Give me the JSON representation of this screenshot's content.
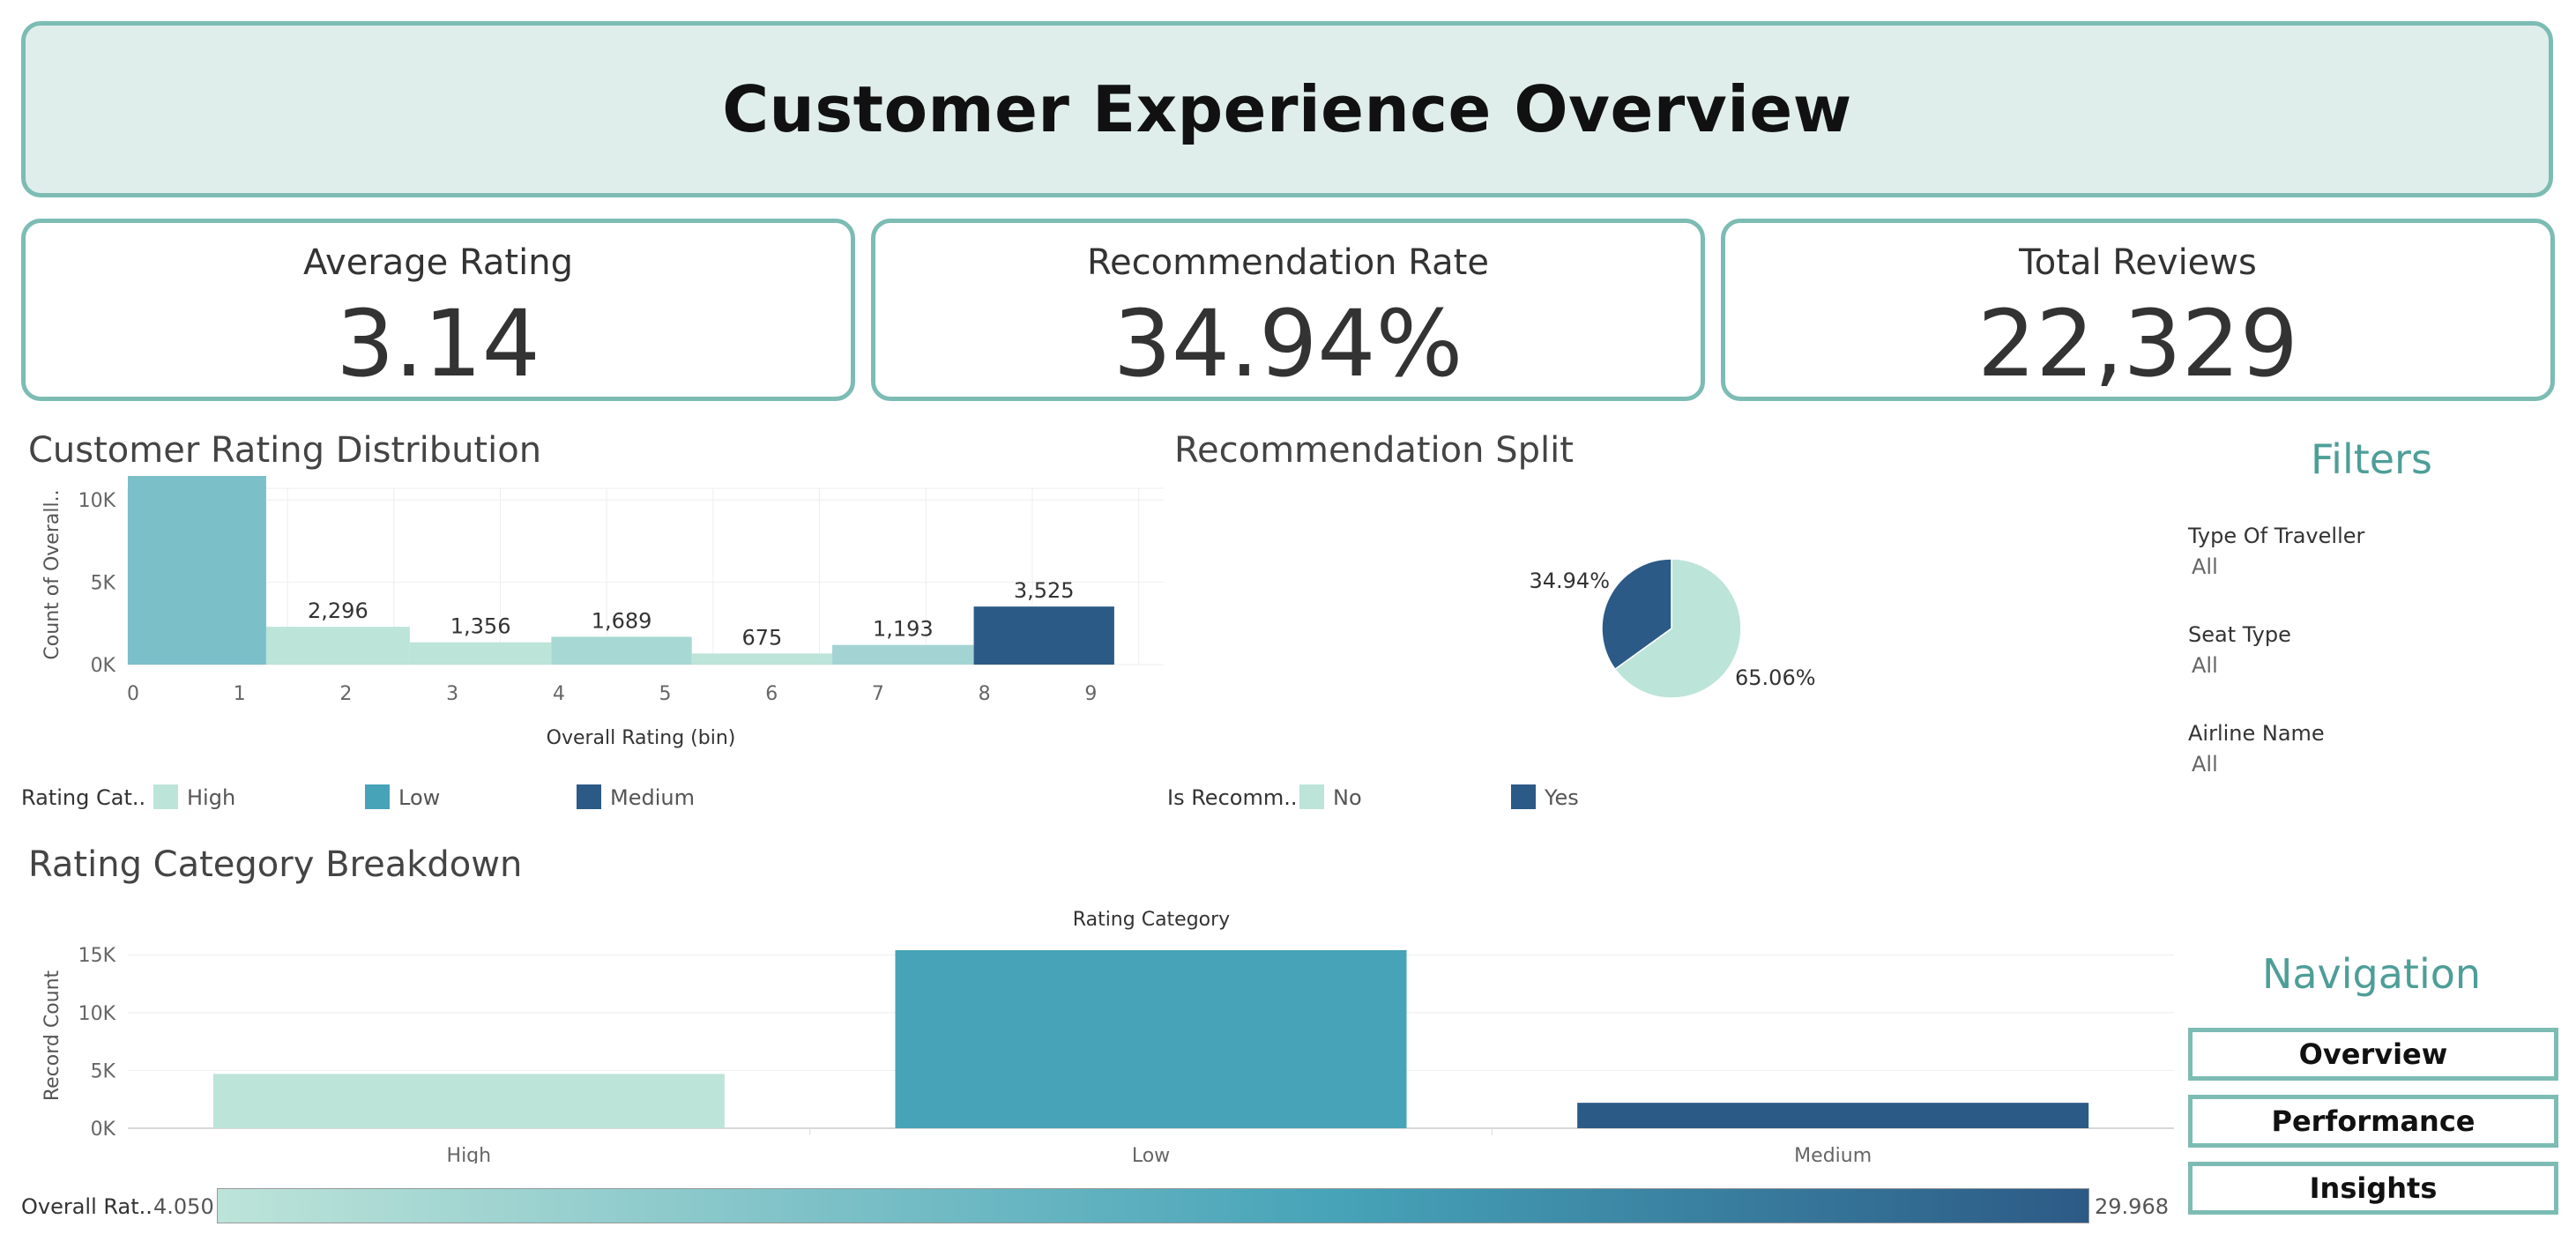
{
  "header": {
    "title": "Customer Experience Overview"
  },
  "kpis": {
    "average_rating": {
      "label": "Average Rating",
      "value": "3.14"
    },
    "recommendation_rate": {
      "label": "Recommendation Rate",
      "value": "34.94%"
    },
    "total_reviews": {
      "label": "Total Reviews",
      "value": "22,329"
    }
  },
  "sections": {
    "rating_distribution": "Customer Rating Distribution",
    "recommendation_split": "Recommendation Split",
    "rating_breakdown": "Rating Category Breakdown"
  },
  "filters": {
    "title": "Filters",
    "items": [
      {
        "label": "Type Of Traveller",
        "value": "All"
      },
      {
        "label": "Seat Type",
        "value": "All"
      },
      {
        "label": "Airline Name",
        "value": "All"
      }
    ]
  },
  "navigation": {
    "title": "Navigation",
    "buttons": [
      "Overview",
      "Performance",
      "Insights"
    ]
  },
  "legends": {
    "rating_category": {
      "title": "Rating Cat..",
      "items": [
        {
          "label": "High",
          "color": "#bde4d9"
        },
        {
          "label": "Low",
          "color": "#46a3b8"
        },
        {
          "label": "Medium",
          "color": "#2c5a86"
        }
      ]
    },
    "is_recommended": {
      "title": "Is Recomm..",
      "items": [
        {
          "label": "No",
          "color": "#bde4d9"
        },
        {
          "label": "Yes",
          "color": "#2c5a86"
        }
      ]
    },
    "overall_rating_gradient": {
      "title": "Overall Rat..",
      "min": "4.050",
      "max": "29.968",
      "color_start": "#bde4d9",
      "color_end": "#2c5a86"
    }
  },
  "chart_data": [
    {
      "type": "bar",
      "id": "rating-distribution",
      "xlabel": "Overall Rating (bin)",
      "ylabel": "Count of Overall..",
      "x_ticks": [
        "0",
        "1",
        "2",
        "3",
        "4",
        "5",
        "6",
        "7",
        "8",
        "9"
      ],
      "y_ticks": [
        "0K",
        "5K",
        "10K"
      ],
      "ylim": [
        0,
        12500
      ],
      "xlim": [
        0,
        9.75
      ],
      "bars": [
        {
          "x0": 0,
          "x1": 1.3,
          "value": 11595,
          "label": "11,595",
          "color": "#7bbfc9"
        },
        {
          "x0": 1.3,
          "x1": 2.65,
          "value": 2296,
          "label": "2,296",
          "color": "#bde4d9"
        },
        {
          "x0": 2.65,
          "x1": 3.98,
          "value": 1356,
          "label": "1,356",
          "color": "#bde4d9"
        },
        {
          "x0": 3.98,
          "x1": 5.3,
          "value": 1689,
          "label": "1,689",
          "color": "#a8d8d4"
        },
        {
          "x0": 5.3,
          "x1": 6.62,
          "value": 675,
          "label": "675",
          "color": "#bde4d9"
        },
        {
          "x0": 6.62,
          "x1": 7.95,
          "value": 1193,
          "label": "1,193",
          "color": "#a3d4d3"
        },
        {
          "x0": 7.95,
          "x1": 9.27,
          "value": 3525,
          "label": "3,525",
          "color": "#2c5a86"
        }
      ]
    },
    {
      "type": "pie",
      "id": "recommendation-split",
      "slices": [
        {
          "name": "No",
          "value": 65.06,
          "label": "65.06%",
          "color": "#bde4d9"
        },
        {
          "name": "Yes",
          "value": 34.94,
          "label": "34.94%",
          "color": "#2c5a86"
        }
      ]
    },
    {
      "type": "bar",
      "id": "rating-category-breakdown",
      "title": "Rating Category",
      "ylabel": "Record Count",
      "categories": [
        "High",
        "Low",
        "Medium"
      ],
      "values": [
        4700,
        15400,
        2200
      ],
      "colors": [
        "#bde4d9",
        "#46a3b8",
        "#2c5a86"
      ],
      "y_ticks": [
        "0K",
        "5K",
        "10K",
        "15K"
      ],
      "ylim": [
        0,
        15400
      ]
    }
  ]
}
